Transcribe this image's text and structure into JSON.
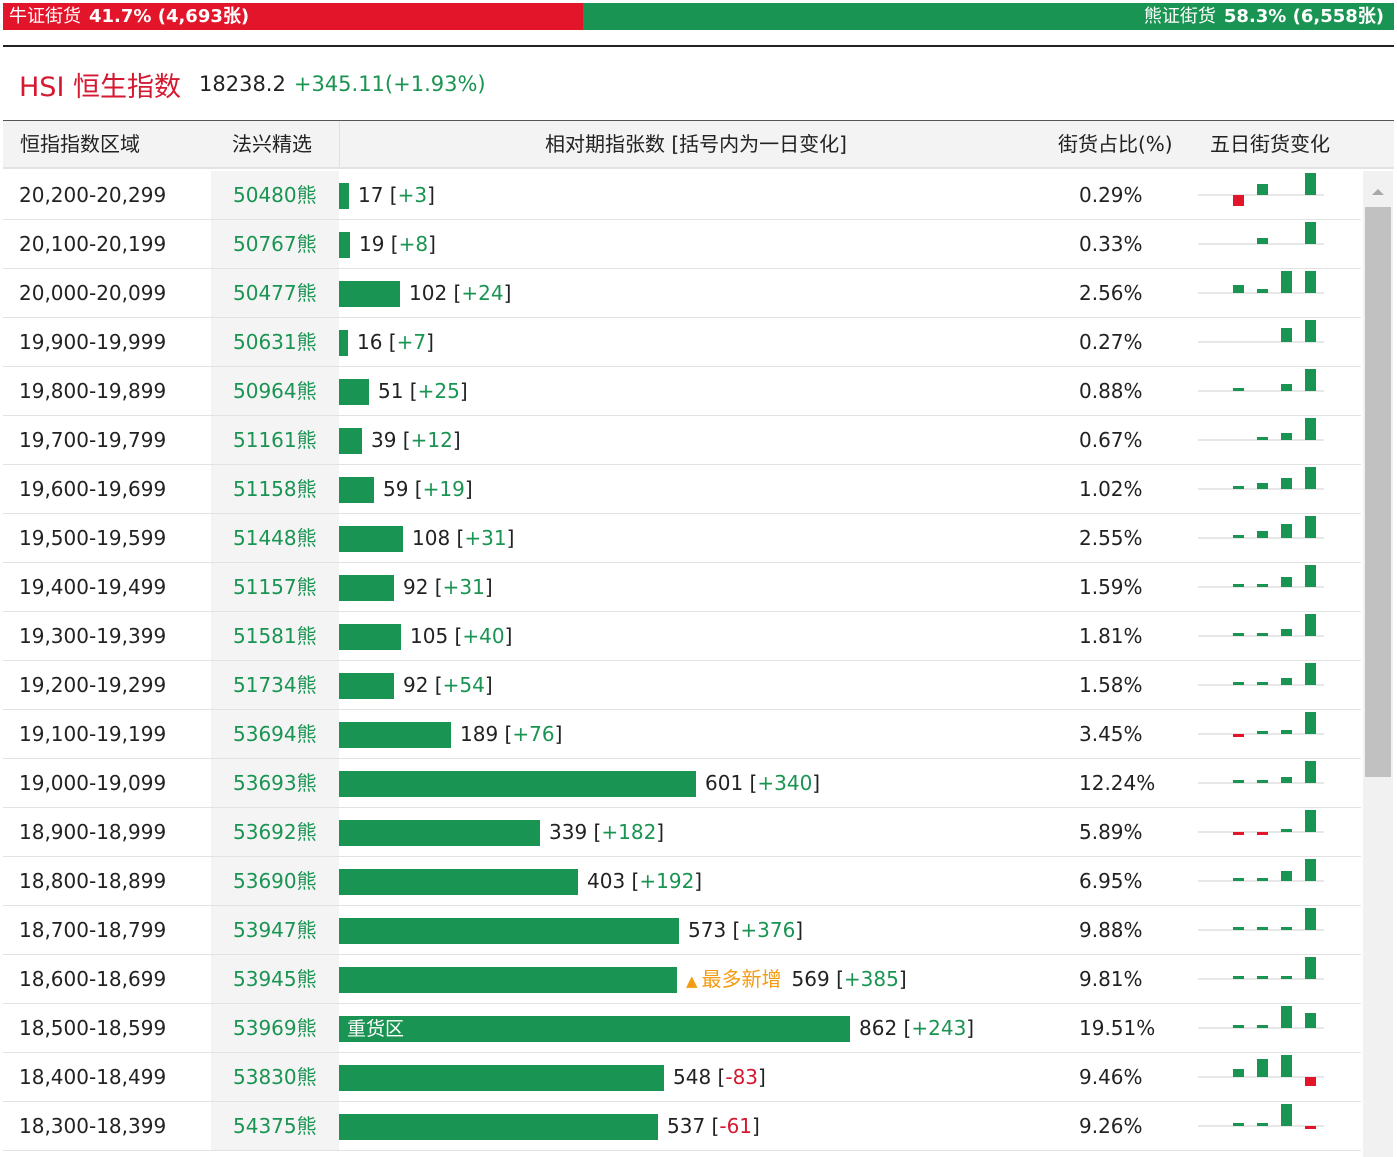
{
  "ratio_bar": {
    "bull_label": "牛证街货",
    "bull_value": "41.7% (4,693张)",
    "bull_fraction": 0.417,
    "bear_label": "熊证街货",
    "bear_value": "58.3% (6,558张)",
    "bear_fraction": 0.583
  },
  "index": {
    "name": "HSI 恒生指数",
    "price": "18238.2",
    "change": "+345.11(+1.93%)"
  },
  "table": {
    "headers": {
      "range": "恒指指数区域",
      "pick": "法兴精选",
      "count": "相对期指张数 [括号内为一日变化]",
      "share": "街货占比(%)",
      "five_day": "五日街货变化"
    },
    "bar_max": 1200,
    "rows": [
      {
        "range": "20,200-20,299",
        "code": "50480",
        "suffix": "熊",
        "count": 17,
        "change": "+3",
        "share": "0.29%",
        "five": [
          -1,
          1,
          0,
          2
        ]
      },
      {
        "range": "20,100-20,199",
        "code": "50767",
        "suffix": "熊",
        "count": 19,
        "change": "+8",
        "share": "0.33%",
        "five": [
          0,
          0.5,
          0,
          2
        ]
      },
      {
        "range": "20,000-20,099",
        "code": "50477",
        "suffix": "熊",
        "count": 102,
        "change": "+24",
        "share": "2.56%",
        "five": [
          0.7,
          0.4,
          2,
          2
        ]
      },
      {
        "range": "19,900-19,999",
        "code": "50631",
        "suffix": "熊",
        "count": 16,
        "change": "+7",
        "share": "0.27%",
        "five": [
          0,
          0,
          1.3,
          2
        ]
      },
      {
        "range": "19,800-19,899",
        "code": "50964",
        "suffix": "熊",
        "count": 51,
        "change": "+25",
        "share": "0.88%",
        "five": [
          0.3,
          0,
          0.6,
          2
        ]
      },
      {
        "range": "19,700-19,799",
        "code": "51161",
        "suffix": "熊",
        "count": 39,
        "change": "+12",
        "share": "0.67%",
        "five": [
          0,
          0.3,
          0.6,
          2
        ]
      },
      {
        "range": "19,600-19,699",
        "code": "51158",
        "suffix": "熊",
        "count": 59,
        "change": "+19",
        "share": "1.02%",
        "five": [
          0.2,
          0.5,
          1,
          2
        ]
      },
      {
        "range": "19,500-19,599",
        "code": "51448",
        "suffix": "熊",
        "count": 108,
        "change": "+31",
        "share": "2.55%",
        "five": [
          0.2,
          0.6,
          1.3,
          2
        ]
      },
      {
        "range": "19,400-19,499",
        "code": "51157",
        "suffix": "熊",
        "count": 92,
        "change": "+31",
        "share": "1.59%",
        "five": [
          0.3,
          0.1,
          0.9,
          2
        ]
      },
      {
        "range": "19,300-19,399",
        "code": "51581",
        "suffix": "熊",
        "count": 105,
        "change": "+40",
        "share": "1.81%",
        "five": [
          0.1,
          0.1,
          0.6,
          2
        ]
      },
      {
        "range": "19,200-19,299",
        "code": "51734",
        "suffix": "熊",
        "count": 92,
        "change": "+54",
        "share": "1.58%",
        "five": [
          0.1,
          0.1,
          0.6,
          2
        ]
      },
      {
        "range": "19,100-19,199",
        "code": "53694",
        "suffix": "熊",
        "count": 189,
        "change": "+76",
        "share": "3.45%",
        "five": [
          -0.2,
          0.1,
          0.4,
          2
        ]
      },
      {
        "range": "19,000-19,099",
        "code": "53693",
        "suffix": "熊",
        "count": 601,
        "change": "+340",
        "share": "12.24%",
        "five": [
          0.1,
          0.1,
          0.5,
          2
        ]
      },
      {
        "range": "18,900-18,999",
        "code": "53692",
        "suffix": "熊",
        "count": 339,
        "change": "+182",
        "share": "5.89%",
        "five": [
          -0.2,
          -0.2,
          0.2,
          2
        ]
      },
      {
        "range": "18,800-18,899",
        "code": "53690",
        "suffix": "熊",
        "count": 403,
        "change": "+192",
        "share": "6.95%",
        "five": [
          0.2,
          0.2,
          0.9,
          2
        ]
      },
      {
        "range": "18,700-18,799",
        "code": "53947",
        "suffix": "熊",
        "count": 573,
        "change": "+376",
        "share": "9.88%",
        "five": [
          0.1,
          0.1,
          0.3,
          2
        ]
      },
      {
        "range": "18,600-18,699",
        "code": "53945",
        "suffix": "熊",
        "count": 569,
        "change": "+385",
        "share": "9.81%",
        "five": [
          0.1,
          0.1,
          0.3,
          2
        ],
        "note": "最多新增"
      },
      {
        "range": "18,500-18,599",
        "code": "53969",
        "suffix": "熊",
        "count": 862,
        "change": "+243",
        "share": "19.51%",
        "five": [
          0.2,
          0.2,
          2,
          1.4
        ],
        "inlabel": "重货区"
      },
      {
        "range": "18,400-18,499",
        "code": "53830",
        "suffix": "熊",
        "count": 548,
        "change": "-83",
        "share": "9.46%",
        "five": [
          0.7,
          1.6,
          2,
          -0.8
        ]
      },
      {
        "range": "18,300-18,399",
        "code": "54375",
        "suffix": "熊",
        "count": 537,
        "change": "-61",
        "share": "9.26%",
        "five": [
          0.2,
          0.2,
          2,
          -0.3
        ]
      }
    ]
  },
  "colors": {
    "green": "#1a9452",
    "red": "#e2152a",
    "note": "#f39c12"
  },
  "icons": {
    "scroll_up": "triangle-up-icon",
    "note": "triangle-up-icon"
  }
}
